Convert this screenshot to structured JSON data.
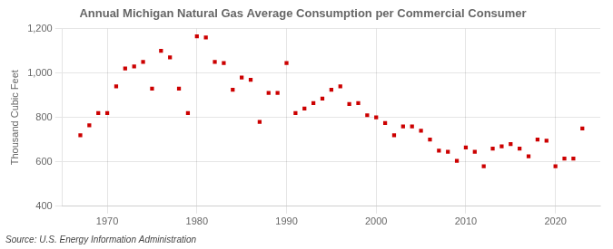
{
  "chart_data": {
    "type": "scatter",
    "title": "Annual Michigan Natural Gas Average Consumption per Commercial Consumer",
    "ylabel": "Thousand Cubic Feet",
    "source": "Source: U.S. Energy Information Administration",
    "color": "#cc0000",
    "marker": "square",
    "grid": true,
    "xlim": [
      1965,
      2025
    ],
    "ylim": [
      400,
      1200
    ],
    "xticks": [
      1970,
      1980,
      1990,
      2000,
      2010,
      2020
    ],
    "yticks": [
      400,
      600,
      800,
      {
        "value": 1000,
        "label": "1,000"
      },
      {
        "value": 1200,
        "label": "1,200"
      }
    ],
    "x": [
      1967,
      1968,
      1969,
      1970,
      1971,
      1972,
      1973,
      1974,
      1975,
      1976,
      1977,
      1978,
      1979,
      1980,
      1981,
      1982,
      1983,
      1984,
      1985,
      1986,
      1987,
      1988,
      1989,
      1990,
      1991,
      1992,
      1993,
      1994,
      1995,
      1996,
      1997,
      1998,
      1999,
      2000,
      2001,
      2002,
      2003,
      2004,
      2005,
      2006,
      2007,
      2008,
      2009,
      2010,
      2011,
      2012,
      2013,
      2014,
      2015,
      2016,
      2017,
      2018,
      2019,
      2020,
      2021,
      2022,
      2023
    ],
    "values": [
      720,
      765,
      820,
      820,
      940,
      1020,
      1030,
      1050,
      930,
      1100,
      1070,
      930,
      820,
      1165,
      1160,
      1050,
      1045,
      925,
      980,
      970,
      780,
      910,
      910,
      1045,
      820,
      840,
      865,
      885,
      925,
      940,
      860,
      865,
      810,
      800,
      775,
      720,
      760,
      760,
      740,
      700,
      650,
      645,
      605,
      665,
      645,
      580,
      660,
      670,
      680,
      660,
      625,
      700,
      695,
      580,
      615,
      615,
      750
    ]
  }
}
